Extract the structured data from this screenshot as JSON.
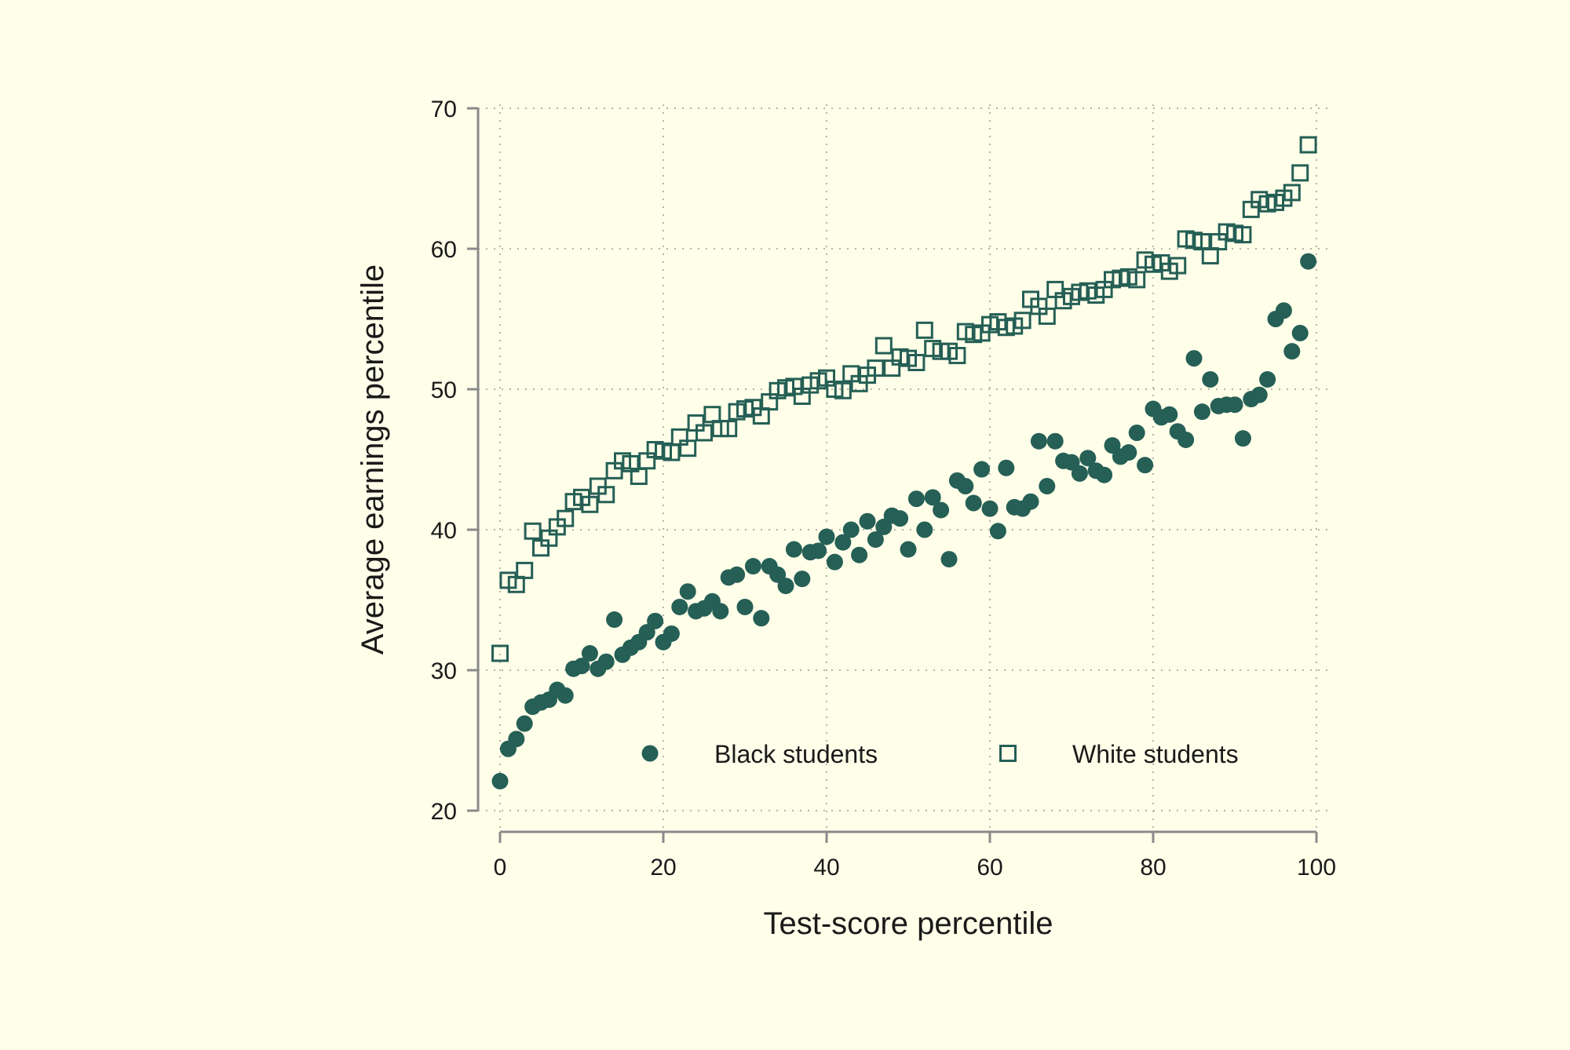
{
  "chart_data": {
    "type": "scatter",
    "title": "",
    "xlabel": "Test-score percentile",
    "ylabel": "Average earnings percentile",
    "xlim": [
      0,
      100
    ],
    "ylim": [
      20,
      70
    ],
    "x_ticks": [
      0,
      20,
      40,
      60,
      80,
      100
    ],
    "y_ticks": [
      20,
      30,
      40,
      50,
      60,
      70
    ],
    "x_tick_labels": [
      "0",
      "20",
      "40",
      "60",
      "80",
      "100"
    ],
    "y_tick_labels": [
      "20",
      "30",
      "40",
      "50",
      "60",
      "70"
    ],
    "grid": "dotted",
    "legend_position": "bottom-inside",
    "colors": {
      "background": "#fefee9",
      "marker": "#255f55",
      "axis": "#8a8a8a",
      "grid": "#b5b5a6"
    },
    "series": [
      {
        "name": "Black students",
        "marker": "filled-circle",
        "x": [
          0,
          1,
          2,
          3,
          4,
          5,
          6,
          7,
          8,
          9,
          10,
          11,
          12,
          13,
          14,
          15,
          16,
          17,
          18,
          19,
          20,
          21,
          22,
          23,
          24,
          25,
          26,
          27,
          28,
          29,
          30,
          31,
          32,
          33,
          34,
          35,
          36,
          37,
          38,
          39,
          40,
          41,
          42,
          43,
          44,
          45,
          46,
          47,
          48,
          49,
          50,
          51,
          52,
          53,
          54,
          55,
          56,
          57,
          58,
          59,
          60,
          61,
          62,
          63,
          64,
          65,
          66,
          67,
          68,
          69,
          70,
          71,
          72,
          73,
          74,
          75,
          76,
          77,
          78,
          79,
          80,
          81,
          82,
          83,
          84,
          85,
          86,
          87,
          88,
          89,
          90,
          91,
          92,
          93,
          94,
          95,
          96,
          97,
          98,
          99
        ],
        "y": [
          22.1,
          24.4,
          25.1,
          26.2,
          27.4,
          27.7,
          27.9,
          28.6,
          28.2,
          30.1,
          30.3,
          31.2,
          30.1,
          30.6,
          33.6,
          31.1,
          31.6,
          32.0,
          32.7,
          33.5,
          32.0,
          32.6,
          34.5,
          35.6,
          34.2,
          34.4,
          34.9,
          34.2,
          36.6,
          36.8,
          34.5,
          37.4,
          33.7,
          37.4,
          36.8,
          36.0,
          38.6,
          36.5,
          38.4,
          38.5,
          39.5,
          37.7,
          39.1,
          40.0,
          38.2,
          40.6,
          39.3,
          40.2,
          41.0,
          40.8,
          38.6,
          42.2,
          40.0,
          42.3,
          41.4,
          37.9,
          43.5,
          43.1,
          41.9,
          44.3,
          41.5,
          39.9,
          44.4,
          41.6,
          41.5,
          42.0,
          46.3,
          43.1,
          46.3,
          44.9,
          44.8,
          44.0,
          45.1,
          44.2,
          43.9,
          46.0,
          45.2,
          45.5,
          46.9,
          44.6,
          48.6,
          48.0,
          48.2,
          47.0,
          46.4,
          52.2,
          48.4,
          50.7,
          48.8,
          48.9,
          48.9,
          46.5,
          49.3,
          49.6,
          50.7,
          55.0,
          55.6,
          52.7,
          54.0,
          59.1
        ]
      },
      {
        "name": "White students",
        "marker": "hollow-square",
        "x": [
          0,
          1,
          2,
          3,
          4,
          5,
          6,
          7,
          8,
          9,
          10,
          11,
          12,
          13,
          14,
          15,
          16,
          17,
          18,
          19,
          20,
          21,
          22,
          23,
          24,
          25,
          26,
          27,
          28,
          29,
          30,
          31,
          32,
          33,
          34,
          35,
          36,
          37,
          38,
          39,
          40,
          41,
          42,
          43,
          44,
          45,
          46,
          47,
          48,
          49,
          50,
          51,
          52,
          53,
          54,
          55,
          56,
          57,
          58,
          59,
          60,
          61,
          62,
          63,
          64,
          65,
          66,
          67,
          68,
          69,
          70,
          71,
          72,
          73,
          74,
          75,
          76,
          77,
          78,
          79,
          80,
          81,
          82,
          83,
          84,
          85,
          86,
          87,
          88,
          89,
          90,
          91,
          92,
          93,
          94,
          95,
          96,
          97,
          98,
          99
        ],
        "y": [
          31.2,
          36.4,
          36.1,
          37.1,
          39.9,
          38.7,
          39.4,
          40.2,
          40.8,
          42.0,
          42.3,
          41.8,
          43.1,
          42.5,
          44.2,
          44.9,
          44.7,
          43.8,
          44.9,
          45.7,
          45.6,
          45.5,
          46.6,
          45.8,
          47.6,
          46.9,
          48.2,
          47.2,
          47.2,
          48.4,
          48.6,
          48.7,
          48.1,
          49.1,
          49.9,
          50.1,
          50.2,
          49.5,
          50.3,
          50.6,
          50.8,
          50.0,
          49.9,
          51.1,
          50.4,
          51.0,
          51.5,
          53.1,
          51.5,
          52.3,
          52.2,
          51.9,
          54.2,
          52.9,
          52.7,
          52.7,
          52.4,
          54.1,
          53.9,
          54.0,
          54.6,
          54.8,
          54.4,
          54.5,
          54.9,
          56.4,
          55.9,
          55.2,
          57.1,
          56.3,
          56.6,
          56.9,
          57.0,
          56.7,
          57.1,
          57.8,
          57.9,
          58.0,
          57.8,
          59.2,
          58.9,
          59.0,
          58.4,
          58.8,
          60.7,
          60.6,
          60.5,
          59.5,
          60.5,
          61.2,
          61.1,
          61.0,
          62.8,
          63.5,
          63.2,
          63.3,
          63.6,
          64.0,
          65.4,
          67.4
        ]
      }
    ]
  }
}
